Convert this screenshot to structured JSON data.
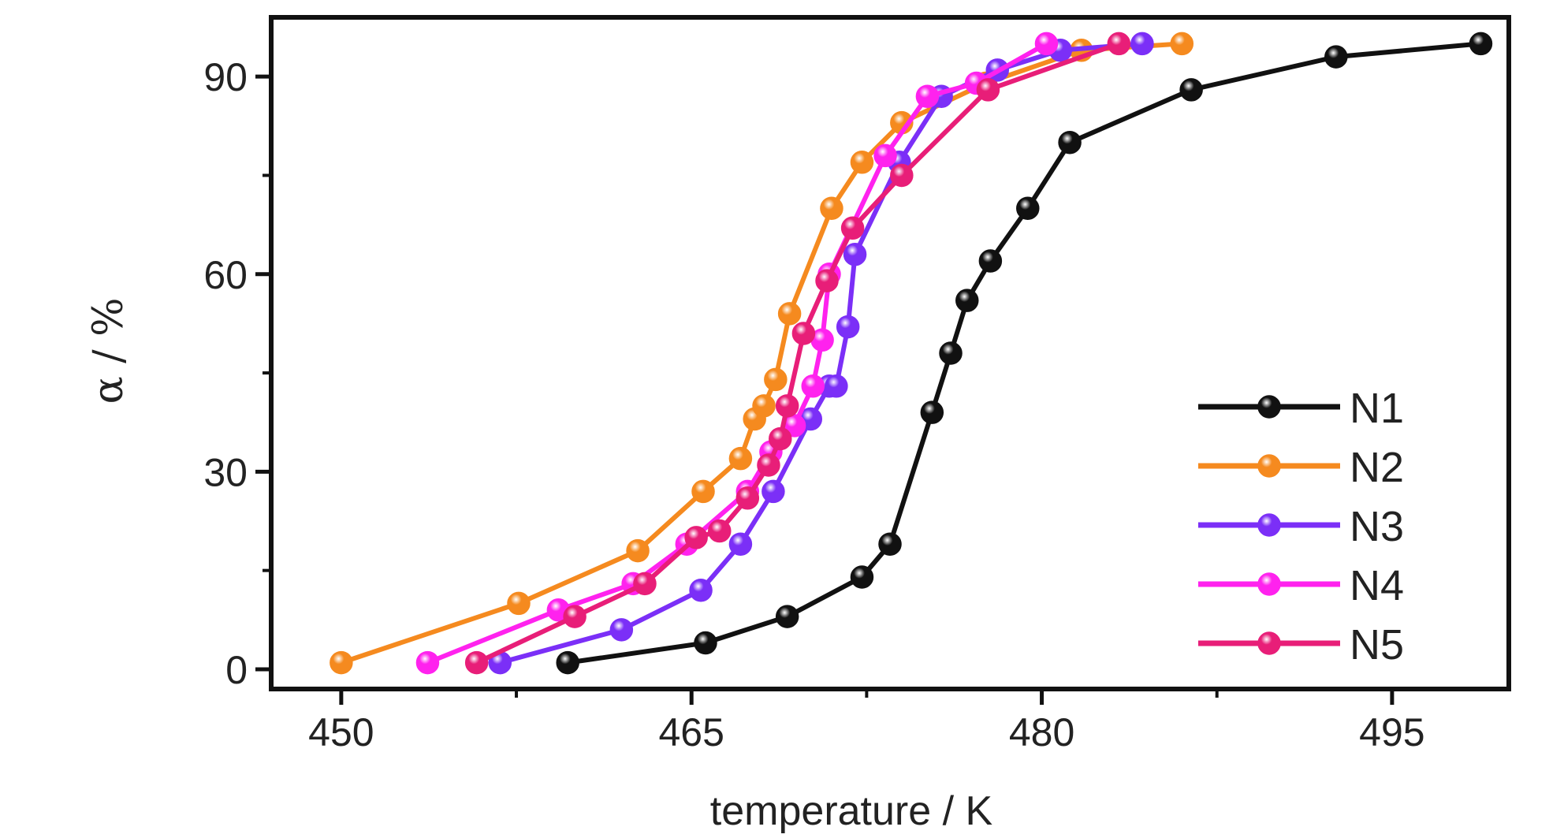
{
  "chart_data": {
    "type": "line",
    "title": "",
    "xlabel": "temperature / K",
    "ylabel": "α / %",
    "xlim": [
      447,
      500
    ],
    "ylim": [
      -3,
      99
    ],
    "xticks": [
      450,
      465,
      480,
      495
    ],
    "xtick_labels": [
      "450",
      "465",
      "480",
      "495"
    ],
    "yticks": [
      0,
      30,
      60,
      90
    ],
    "ytick_labels": [
      "0",
      "30",
      "60",
      "90"
    ],
    "grid": false,
    "legend_position": "bottom-right",
    "series": [
      {
        "name": "N1",
        "color": "#111111",
        "x": [
          459.7,
          465.6,
          469.1,
          472.3,
          473.5,
          475.3,
          476.1,
          476.8,
          477.8,
          479.4,
          481.2,
          486.4,
          492.6,
          498.8
        ],
        "y": [
          1,
          4,
          8,
          14,
          19,
          39,
          48,
          56,
          62,
          70,
          80,
          88,
          93,
          95
        ]
      },
      {
        "name": "N2",
        "color": "#f58a1f",
        "x": [
          450.0,
          457.6,
          462.7,
          465.5,
          467.1,
          467.7,
          468.1,
          468.6,
          469.2,
          471.0,
          472.3,
          474.0,
          477.6,
          481.7,
          486.0
        ],
        "y": [
          1,
          10,
          18,
          27,
          32,
          38,
          40,
          44,
          54,
          70,
          77,
          83,
          89,
          94,
          95
        ]
      },
      {
        "name": "N3",
        "color": "#7b2ff7",
        "x": [
          456.8,
          462.0,
          465.4,
          467.1,
          468.5,
          470.1,
          470.9,
          471.2,
          471.7,
          472.0,
          473.9,
          475.7,
          478.1,
          480.8,
          484.3
        ],
        "y": [
          1,
          6,
          12,
          19,
          27,
          38,
          43,
          43,
          52,
          63,
          77,
          87,
          91,
          94,
          95
        ]
      },
      {
        "name": "N4",
        "color": "#ff22ee",
        "x": [
          453.7,
          459.3,
          462.5,
          464.8,
          467.4,
          468.4,
          469.4,
          470.2,
          470.6,
          470.9,
          473.3,
          475.1,
          477.2,
          480.2
        ],
        "y": [
          1,
          9,
          13,
          19,
          27,
          33,
          37,
          43,
          50,
          60,
          78,
          87,
          89,
          95
        ]
      },
      {
        "name": "N5",
        "color": "#e81e78",
        "x": [
          455.8,
          460.0,
          463.0,
          465.2,
          466.2,
          467.4,
          468.3,
          468.8,
          469.1,
          469.8,
          470.8,
          471.9,
          474.0,
          477.7,
          483.3
        ],
        "y": [
          1,
          8,
          13,
          20,
          21,
          26,
          31,
          35,
          40,
          51,
          59,
          67,
          75,
          88,
          95
        ]
      }
    ]
  }
}
